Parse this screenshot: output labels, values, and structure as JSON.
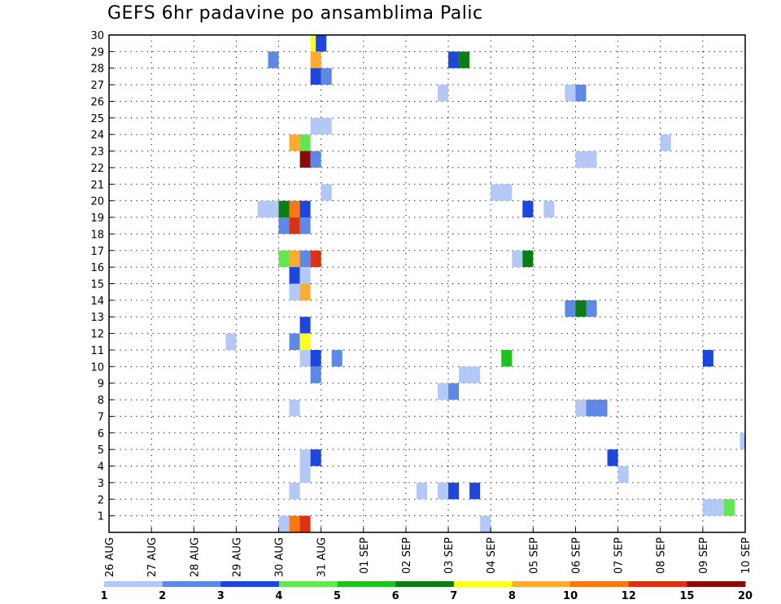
{
  "chart_data": {
    "type": "heatmap",
    "title": "GEFS 6hr padavine po ansamblima Palic",
    "xlabel": "",
    "ylabel": "",
    "x_tick_labels": [
      "26 AUG",
      "27 AUG",
      "28 AUG",
      "29 AUG",
      "30 AUG",
      "31 AUG",
      "01 SEP",
      "02 SEP",
      "03 SEP",
      "04 SEP",
      "05 SEP",
      "06 SEP",
      "07 SEP",
      "08 SEP",
      "09 SEP",
      "10 SEP"
    ],
    "xlim": [
      0,
      60
    ],
    "x_unit": "6-hour step from 26 AUG 00Z",
    "y_tick_labels": [
      "1",
      "2",
      "3",
      "4",
      "5",
      "6",
      "7",
      "8",
      "9",
      "10",
      "11",
      "12",
      "13",
      "14",
      "15",
      "16",
      "17",
      "18",
      "19",
      "20",
      "21",
      "22",
      "23",
      "24",
      "25",
      "26",
      "27",
      "28",
      "29",
      "30"
    ],
    "ylim": [
      0,
      30
    ],
    "y_unit": "ensemble member",
    "grid": true,
    "colorbar": {
      "placement": "bottom",
      "boundaries": [
        1,
        2,
        3,
        4,
        5,
        6,
        7,
        8,
        10,
        12,
        15,
        20
      ],
      "colors": [
        "#b4c8f5",
        "#5f87e6",
        "#1e46dc",
        "#64e650",
        "#1ec31e",
        "#0a7d14",
        "#ffff1e",
        "#ffaa32",
        "#f57814",
        "#dc3214",
        "#8c0a0a"
      ]
    },
    "cells": [
      {
        "t": 19,
        "m": 30,
        "c": 6
      },
      {
        "t": 19.5,
        "m": 30,
        "c": 2
      },
      {
        "t": 15,
        "m": 29,
        "c": 1
      },
      {
        "t": 19,
        "m": 29,
        "c": 7
      },
      {
        "t": 32,
        "m": 29,
        "c": 2
      },
      {
        "t": 33,
        "m": 29,
        "c": 5
      },
      {
        "t": 19,
        "m": 28,
        "c": 2
      },
      {
        "t": 20,
        "m": 28,
        "c": 1
      },
      {
        "t": 31,
        "m": 27,
        "c": 0
      },
      {
        "t": 43,
        "m": 27,
        "c": 0
      },
      {
        "t": 44,
        "m": 27,
        "c": 1
      },
      {
        "t": 19,
        "m": 25,
        "c": 0
      },
      {
        "t": 20,
        "m": 25,
        "c": 0
      },
      {
        "t": 17,
        "m": 24,
        "c": 7
      },
      {
        "t": 18,
        "m": 24,
        "c": 3
      },
      {
        "t": 52,
        "m": 24,
        "c": 0
      },
      {
        "t": 18,
        "m": 23,
        "c": 10
      },
      {
        "t": 19,
        "m": 23,
        "c": 1
      },
      {
        "t": 44,
        "m": 23,
        "c": 0
      },
      {
        "t": 45,
        "m": 23,
        "c": 0
      },
      {
        "t": 20,
        "m": 21,
        "c": 0
      },
      {
        "t": 36,
        "m": 21,
        "c": 0
      },
      {
        "t": 37,
        "m": 21,
        "c": 0
      },
      {
        "t": 14,
        "m": 20,
        "c": 0
      },
      {
        "t": 15,
        "m": 20,
        "c": 0
      },
      {
        "t": 16,
        "m": 20,
        "c": 5
      },
      {
        "t": 17,
        "m": 20,
        "c": 8
      },
      {
        "t": 18,
        "m": 20,
        "c": 2
      },
      {
        "t": 39,
        "m": 20,
        "c": 2
      },
      {
        "t": 41,
        "m": 20,
        "c": 0
      },
      {
        "t": 16,
        "m": 19,
        "c": 1
      },
      {
        "t": 17,
        "m": 19,
        "c": 9
      },
      {
        "t": 18,
        "m": 19,
        "c": 1
      },
      {
        "t": 16,
        "m": 17,
        "c": 3
      },
      {
        "t": 17,
        "m": 17,
        "c": 7
      },
      {
        "t": 18,
        "m": 17,
        "c": 1
      },
      {
        "t": 19,
        "m": 17,
        "c": 9
      },
      {
        "t": 38,
        "m": 17,
        "c": 0
      },
      {
        "t": 39,
        "m": 17,
        "c": 5
      },
      {
        "t": 17,
        "m": 16,
        "c": 2
      },
      {
        "t": 18,
        "m": 16,
        "c": 0
      },
      {
        "t": 17,
        "m": 15,
        "c": 0
      },
      {
        "t": 18,
        "m": 15,
        "c": 7
      },
      {
        "t": 43,
        "m": 14,
        "c": 1
      },
      {
        "t": 44,
        "m": 14,
        "c": 5
      },
      {
        "t": 45,
        "m": 14,
        "c": 1
      },
      {
        "t": 18,
        "m": 13,
        "c": 2
      },
      {
        "t": 11,
        "m": 12,
        "c": 0
      },
      {
        "t": 17,
        "m": 12,
        "c": 1
      },
      {
        "t": 18,
        "m": 12,
        "c": 6
      },
      {
        "t": 18,
        "m": 11,
        "c": 0
      },
      {
        "t": 19,
        "m": 11,
        "c": 2
      },
      {
        "t": 21,
        "m": 11,
        "c": 1
      },
      {
        "t": 37,
        "m": 11,
        "c": 4
      },
      {
        "t": 56,
        "m": 11,
        "c": 2
      },
      {
        "t": 19,
        "m": 10,
        "c": 1
      },
      {
        "t": 33,
        "m": 10,
        "c": 0
      },
      {
        "t": 34,
        "m": 10,
        "c": 0
      },
      {
        "t": 31,
        "m": 9,
        "c": 0
      },
      {
        "t": 32,
        "m": 9,
        "c": 1
      },
      {
        "t": 17,
        "m": 8,
        "c": 0
      },
      {
        "t": 44,
        "m": 8,
        "c": 0
      },
      {
        "t": 45,
        "m": 8,
        "c": 1
      },
      {
        "t": 46,
        "m": 8,
        "c": 1
      },
      {
        "t": 59.5,
        "m": 6,
        "c": 0
      },
      {
        "t": 18,
        "m": 5,
        "c": 0
      },
      {
        "t": 19,
        "m": 5,
        "c": 2
      },
      {
        "t": 47,
        "m": 5,
        "c": 2
      },
      {
        "t": 18,
        "m": 4,
        "c": 0
      },
      {
        "t": 48,
        "m": 4,
        "c": 0
      },
      {
        "t": 17,
        "m": 3,
        "c": 0
      },
      {
        "t": 29,
        "m": 3,
        "c": 0
      },
      {
        "t": 31,
        "m": 3,
        "c": 0
      },
      {
        "t": 32,
        "m": 3,
        "c": 2
      },
      {
        "t": 34,
        "m": 3,
        "c": 2
      },
      {
        "t": 56,
        "m": 2,
        "c": 0
      },
      {
        "t": 57,
        "m": 2,
        "c": 0
      },
      {
        "t": 58,
        "m": 2,
        "c": 3
      },
      {
        "t": 16,
        "m": 1,
        "c": 0
      },
      {
        "t": 17,
        "m": 1,
        "c": 8
      },
      {
        "t": 18,
        "m": 1,
        "c": 9
      },
      {
        "t": 35,
        "m": 1,
        "c": 0
      }
    ]
  }
}
